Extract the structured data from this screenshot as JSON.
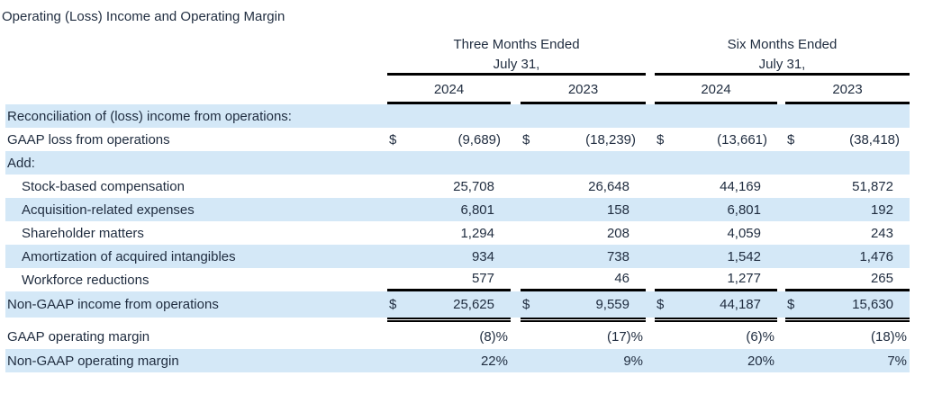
{
  "title": "Operating (Loss) Income and Operating Margin",
  "table": {
    "groups": [
      {
        "period": "Three Months Ended",
        "date": "July 31,",
        "years": [
          "2024",
          "2023"
        ]
      },
      {
        "period": "Six Months Ended",
        "date": "July 31,",
        "years": [
          "2024",
          "2023"
        ]
      }
    ],
    "rows": [
      {
        "label": "Reconciliation of (loss) income from operations:"
      },
      {
        "label": "GAAP loss from operations",
        "dollar": "$",
        "values": [
          "(9,689)",
          "(18,239)",
          "(13,661)",
          "(38,418)"
        ]
      },
      {
        "label": "Add:"
      },
      {
        "label": "Stock-based compensation",
        "values": [
          "25,708",
          "26,648",
          "44,169",
          "51,872"
        ]
      },
      {
        "label": "Acquisition-related expenses",
        "values": [
          "6,801",
          "158",
          "6,801",
          "192"
        ]
      },
      {
        "label": "Shareholder matters",
        "values": [
          "1,294",
          "208",
          "4,059",
          "243"
        ]
      },
      {
        "label": "Amortization of acquired intangibles",
        "values": [
          "934",
          "738",
          "1,542",
          "1,476"
        ]
      },
      {
        "label": "Workforce reductions",
        "values": [
          "577",
          "46",
          "1,277",
          "265"
        ]
      },
      {
        "label": "Non-GAAP income from operations",
        "dollar": "$",
        "values": [
          "25,625",
          "9,559",
          "44,187",
          "15,630"
        ]
      },
      {
        "label": "GAAP operating margin",
        "values": [
          "(8)%",
          "(17)%",
          "(6)%",
          "(18)%"
        ]
      },
      {
        "label": "Non-GAAP operating margin",
        "values": [
          "22%",
          "9%",
          "20%",
          "7%"
        ]
      }
    ]
  },
  "colors": {
    "row_highlight": "#d4e8f7",
    "text": "#1f2c3f",
    "rule": "#000000",
    "background": "#ffffff"
  }
}
